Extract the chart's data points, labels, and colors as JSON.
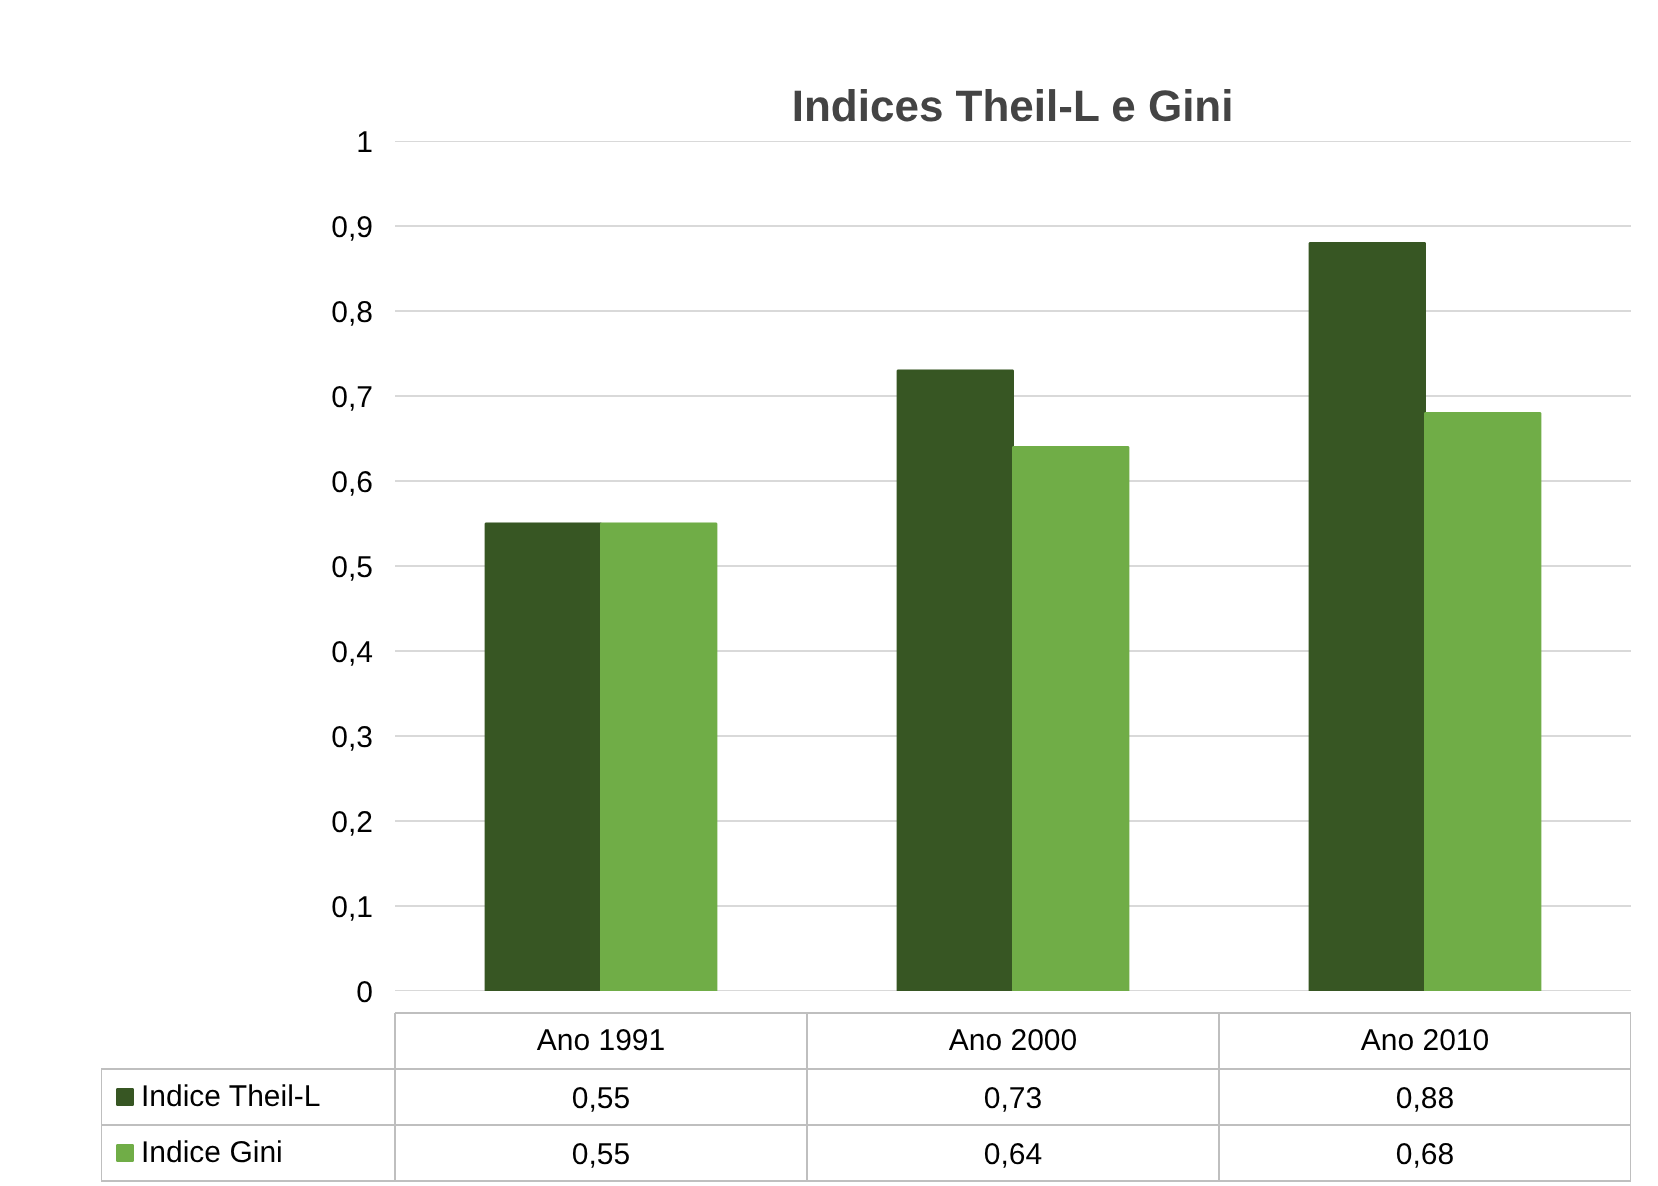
{
  "chart_data": {
    "type": "bar",
    "title": "Indices Theil-L e Gini",
    "categories": [
      "Ano 1991",
      "Ano 2000",
      "Ano 2010"
    ],
    "series": [
      {
        "name": "Indice Theil-L",
        "color": "#375623",
        "values": [
          0.55,
          0.73,
          0.88
        ],
        "value_labels": [
          "0,55",
          "0,73",
          "0,88"
        ]
      },
      {
        "name": "Indice Gini",
        "color": "#70ad47",
        "values": [
          0.55,
          0.64,
          0.68
        ],
        "value_labels": [
          "0,55",
          "0,64",
          "0,68"
        ]
      }
    ],
    "ylim": [
      0,
      1
    ],
    "yticks": [
      0,
      {
        "value": 0.1,
        "label": "0,1"
      },
      {
        "value": 0.2,
        "label": "0,2"
      },
      {
        "value": 0.3,
        "label": "0,3"
      },
      {
        "value": 0.4,
        "label": "0,4"
      },
      {
        "value": 0.5,
        "label": "0,5"
      },
      {
        "value": 0.6,
        "label": "0,6"
      },
      {
        "value": 0.7,
        "label": "0,7"
      },
      {
        "value": 0.8,
        "label": "0,8"
      },
      {
        "value": 0.9,
        "label": "0,9"
      },
      1
    ],
    "grid": "y",
    "legend": "bottom"
  }
}
